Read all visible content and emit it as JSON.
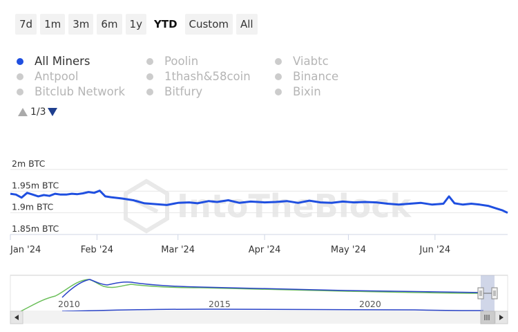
{
  "range_selector": {
    "buttons": [
      "7d",
      "1m",
      "3m",
      "6m",
      "1y",
      "YTD",
      "Custom",
      "All"
    ],
    "active": "YTD"
  },
  "legend": {
    "items": [
      {
        "label": "All Miners",
        "on": true
      },
      {
        "label": "Antpool",
        "on": false
      },
      {
        "label": "Bitclub Network",
        "on": false
      },
      {
        "label": "Poolin",
        "on": false
      },
      {
        "label": "1thash&58coin",
        "on": false
      },
      {
        "label": "Bitfury",
        "on": false
      },
      {
        "label": "Viabtc",
        "on": false
      },
      {
        "label": "Binance",
        "on": false
      },
      {
        "label": "Bixin",
        "on": false
      }
    ],
    "page_label": "1/3"
  },
  "watermark": "IntoTheBlock",
  "colors": {
    "series": "#1f4fe0",
    "navigator_green": "#6bbf59",
    "navigator_blue": "#2a44c8",
    "grid": "#e6e6e6"
  },
  "chart_data": {
    "type": "line",
    "title": "",
    "xlabel": "",
    "ylabel": "",
    "y_tick_labels": [
      "2m BTC",
      "1.95m BTC",
      "1.9m BTC",
      "1.85m BTC"
    ],
    "y_ticks": [
      2000000,
      1950000,
      1900000,
      1850000
    ],
    "ylim": [
      1850000,
      2000000
    ],
    "x_tick_labels": [
      "Jan '24",
      "Feb '24",
      "Mar '24",
      "Apr '24",
      "May '24",
      "Jun '24"
    ],
    "x_ticks": [
      "2024-01-01",
      "2024-02-01",
      "2024-03-01",
      "2024-04-01",
      "2024-05-01",
      "2024-06-01"
    ],
    "xlim": [
      "2024-01-01",
      "2024-06-27"
    ],
    "grid": true,
    "series": [
      {
        "name": "All Miners",
        "x": [
          "2024-01-01",
          "2024-01-03",
          "2024-01-05",
          "2024-01-07",
          "2024-01-09",
          "2024-01-11",
          "2024-01-13",
          "2024-01-15",
          "2024-01-17",
          "2024-01-19",
          "2024-01-21",
          "2024-01-23",
          "2024-01-25",
          "2024-01-27",
          "2024-01-29",
          "2024-01-31",
          "2024-02-02",
          "2024-02-04",
          "2024-02-06",
          "2024-02-10",
          "2024-02-14",
          "2024-02-18",
          "2024-02-22",
          "2024-02-26",
          "2024-03-01",
          "2024-03-05",
          "2024-03-08",
          "2024-03-12",
          "2024-03-15",
          "2024-03-19",
          "2024-03-23",
          "2024-03-27",
          "2024-04-01",
          "2024-04-05",
          "2024-04-09",
          "2024-04-13",
          "2024-04-17",
          "2024-04-21",
          "2024-04-25",
          "2024-04-29",
          "2024-05-03",
          "2024-05-07",
          "2024-05-11",
          "2024-05-15",
          "2024-05-19",
          "2024-05-23",
          "2024-05-27",
          "2024-05-31",
          "2024-06-04",
          "2024-06-06",
          "2024-06-08",
          "2024-06-11",
          "2024-06-14",
          "2024-06-17",
          "2024-06-20",
          "2024-06-23",
          "2024-06-25",
          "2024-06-27"
        ],
        "values": [
          1944000,
          1942000,
          1935000,
          1946000,
          1942000,
          1938000,
          1941000,
          1939000,
          1944000,
          1942000,
          1942000,
          1944000,
          1943000,
          1945000,
          1948000,
          1946000,
          1951000,
          1938000,
          1936000,
          1933000,
          1929000,
          1922000,
          1920000,
          1918000,
          1923000,
          1924000,
          1922000,
          1927000,
          1925000,
          1929000,
          1923000,
          1926000,
          1924000,
          1925000,
          1927000,
          1923000,
          1928000,
          1924000,
          1923000,
          1926000,
          1924000,
          1925000,
          1924000,
          1921000,
          1919000,
          1921000,
          1923000,
          1919000,
          1921000,
          1938000,
          1922000,
          1919000,
          1921000,
          1919000,
          1916000,
          1910000,
          1906000,
          1900000
        ]
      }
    ]
  },
  "navigator": {
    "tick_labels": [
      "2010",
      "2015",
      "2020"
    ]
  }
}
